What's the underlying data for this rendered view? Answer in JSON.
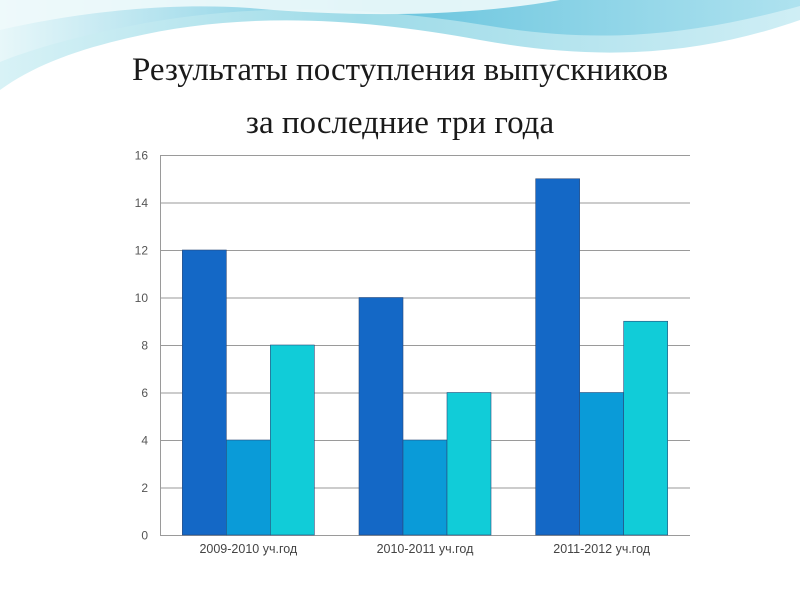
{
  "slide": {
    "title_line1": "Результаты поступления выпускников",
    "title_line2": "за последние три года"
  },
  "colors": {
    "background": "#ffffff",
    "wave_light": "#cdeef4",
    "wave_mid": "#8fd6e6",
    "wave_deep": "#4fb8d6",
    "gridline": "#9a9a9a"
  },
  "chart_data": {
    "type": "bar",
    "title": "",
    "xlabel": "",
    "ylabel": "",
    "categories": [
      "2009-2010 уч.год",
      "2010-2011 уч.год",
      "2011-2012 уч.год"
    ],
    "series": [
      {
        "values": [
          12,
          10,
          15
        ],
        "color": "#1468c6"
      },
      {
        "values": [
          4,
          4,
          6
        ],
        "color": "#0a9bd8"
      },
      {
        "values": [
          8,
          6,
          9
        ],
        "color": "#11ccd8"
      }
    ],
    "ylim": [
      0,
      16
    ],
    "yticks": [
      0,
      2,
      4,
      6,
      8,
      10,
      12,
      14,
      16
    ],
    "grid": true,
    "legend": "none"
  }
}
